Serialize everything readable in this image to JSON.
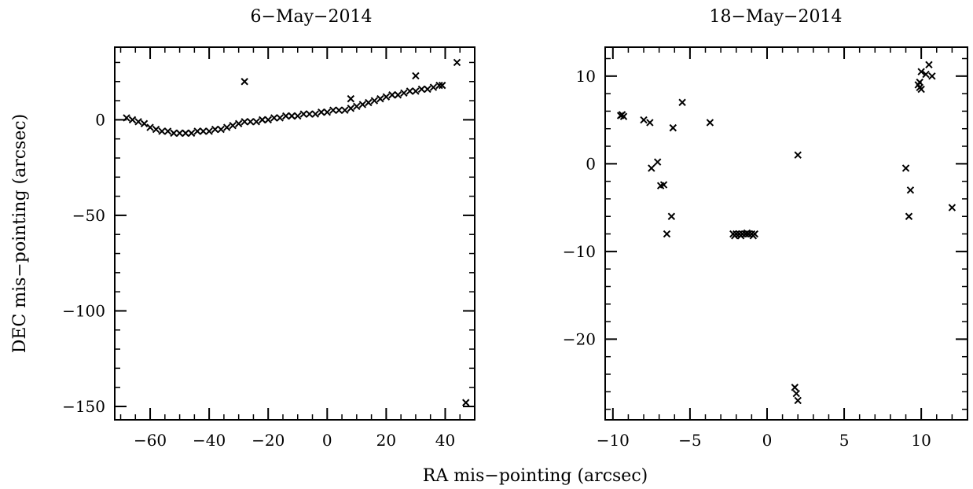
{
  "figure": {
    "xlabel": "RA mis−pointing (arcsec)",
    "ylabel": "DEC mis−pointing (arcsec)"
  },
  "chart_data": [
    {
      "type": "scatter",
      "title": "6−May−2014",
      "marker": "x",
      "xlim": [
        -72,
        50
      ],
      "ylim": [
        -157,
        38
      ],
      "xticks": [
        -60,
        -40,
        -20,
        0,
        20,
        40
      ],
      "xtick_labels": [
        "−60",
        "−40",
        "−20",
        "0",
        "20",
        "40"
      ],
      "yticks": [
        0,
        -50,
        -100,
        -150
      ],
      "ytick_labels": [
        "0",
        "−50",
        "−100",
        "−150"
      ],
      "points": [
        [
          -68,
          1
        ],
        [
          -66,
          0
        ],
        [
          -64,
          -1
        ],
        [
          -62,
          -2
        ],
        [
          -60,
          -4
        ],
        [
          -58,
          -5
        ],
        [
          -56,
          -6
        ],
        [
          -54,
          -6
        ],
        [
          -52,
          -7
        ],
        [
          -50,
          -7
        ],
        [
          -48,
          -7
        ],
        [
          -46,
          -7
        ],
        [
          -44,
          -6
        ],
        [
          -42,
          -6
        ],
        [
          -40,
          -6
        ],
        [
          -38,
          -5
        ],
        [
          -36,
          -5
        ],
        [
          -34,
          -4
        ],
        [
          -32,
          -3
        ],
        [
          -30,
          -2
        ],
        [
          -28,
          -1
        ],
        [
          -26,
          -1
        ],
        [
          -24,
          -1
        ],
        [
          -22,
          0
        ],
        [
          -20,
          0
        ],
        [
          -18,
          1
        ],
        [
          -16,
          1
        ],
        [
          -14,
          2
        ],
        [
          -12,
          2
        ],
        [
          -10,
          2
        ],
        [
          -8,
          3
        ],
        [
          -6,
          3
        ],
        [
          -4,
          3
        ],
        [
          -2,
          4
        ],
        [
          0,
          4
        ],
        [
          2,
          5
        ],
        [
          4,
          5
        ],
        [
          6,
          5
        ],
        [
          8,
          6
        ],
        [
          10,
          7
        ],
        [
          12,
          8
        ],
        [
          14,
          9
        ],
        [
          16,
          10
        ],
        [
          18,
          11
        ],
        [
          20,
          12
        ],
        [
          22,
          13
        ],
        [
          24,
          13
        ],
        [
          26,
          14
        ],
        [
          28,
          15
        ],
        [
          30,
          15
        ],
        [
          32,
          16
        ],
        [
          34,
          16
        ],
        [
          36,
          17
        ],
        [
          38,
          18
        ],
        [
          39,
          18
        ],
        [
          -28,
          20
        ],
        [
          8,
          11
        ],
        [
          30,
          23
        ],
        [
          44,
          30
        ],
        [
          47,
          -148
        ]
      ]
    },
    {
      "type": "scatter",
      "title": "18−May−2014",
      "marker": "x",
      "xlim": [
        -10.5,
        13
      ],
      "ylim": [
        -29.2,
        13.3
      ],
      "xticks": [
        -10,
        -5,
        0,
        5,
        10
      ],
      "xtick_labels": [
        "−10",
        "−5",
        "0",
        "5",
        "10"
      ],
      "yticks": [
        10,
        0,
        -10,
        -20
      ],
      "ytick_labels": [
        "10",
        "0",
        "−10",
        "−20"
      ],
      "points": [
        [
          -9.5,
          5.5
        ],
        [
          -9.3,
          5.4
        ],
        [
          -9.4,
          5.6
        ],
        [
          -8,
          5
        ],
        [
          -7.6,
          4.7
        ],
        [
          -6.1,
          4.1
        ],
        [
          -5.5,
          7
        ],
        [
          -3.7,
          4.7
        ],
        [
          -7.5,
          -0.5
        ],
        [
          -7.1,
          0.2
        ],
        [
          -6.9,
          -2.5
        ],
        [
          -6.7,
          -2.4
        ],
        [
          -6.2,
          -6
        ],
        [
          -6.5,
          -8
        ],
        [
          -2.2,
          -8
        ],
        [
          -2,
          -8
        ],
        [
          -1.8,
          -8
        ],
        [
          -1.6,
          -8
        ],
        [
          -1.4,
          -8
        ],
        [
          -1.2,
          -8
        ],
        [
          -1,
          -8
        ],
        [
          -0.8,
          -8
        ],
        [
          -2.1,
          -8.2
        ],
        [
          -1.7,
          -8.2
        ],
        [
          -1.3,
          -7.9
        ],
        [
          -0.9,
          -8.2
        ],
        [
          2,
          1
        ],
        [
          1.8,
          -25.5
        ],
        [
          1.9,
          -26.2
        ],
        [
          2,
          -27
        ],
        [
          9,
          -0.5
        ],
        [
          9.3,
          -3
        ],
        [
          9.2,
          -6
        ],
        [
          9.8,
          9
        ],
        [
          9.9,
          8.7
        ],
        [
          10,
          8.5
        ],
        [
          9.9,
          9.3
        ],
        [
          10,
          10.5
        ],
        [
          10.3,
          10.2
        ],
        [
          10.5,
          11.3
        ],
        [
          10.7,
          10
        ],
        [
          12,
          -5
        ]
      ]
    }
  ]
}
